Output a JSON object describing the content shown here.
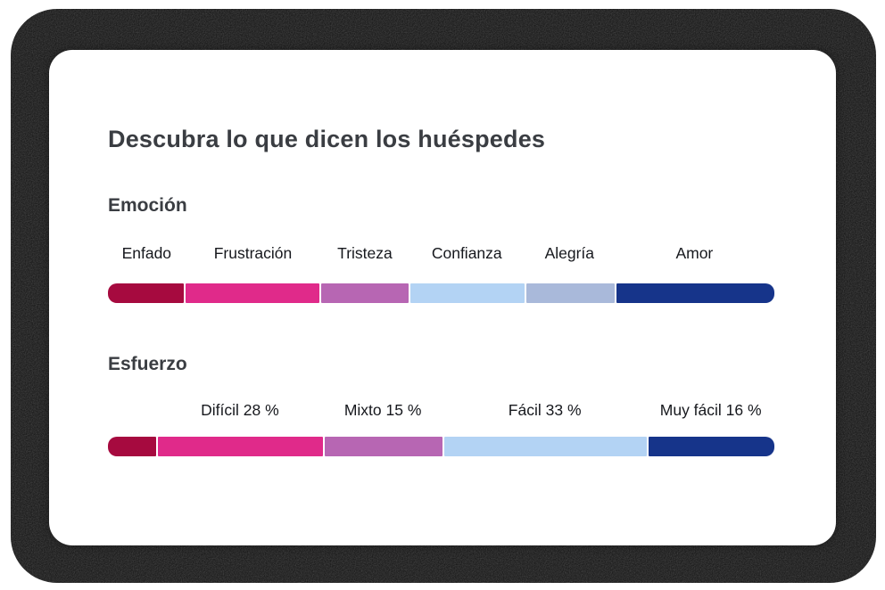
{
  "card": {
    "title": "Descubra lo que dicen los huéspedes"
  },
  "palette": {
    "enfado_crimson": "#A60A3F",
    "frustracion_pink": "#E02A8A",
    "tristeza_orchid": "#B766B3",
    "confianza_lightblue": "#B3D3F4",
    "alegria_grayblue": "#A9B9DA",
    "amor_navy": "#16348A",
    "heading_text": "#3a3d42",
    "label_text": "#16181d",
    "card_bg": "#ffffff",
    "backdrop_noise": "#101010"
  },
  "sections": [
    {
      "id": "emocion",
      "heading": "Emoción",
      "bar": {
        "segments": [
          {
            "label": "Enfado",
            "color": "#A60A3F",
            "width_pct": 11.6
          },
          {
            "label": "Frustración",
            "color": "#E02A8A",
            "width_pct": 20.3
          },
          {
            "label": "Tristeza",
            "color": "#B766B3",
            "width_pct": 13.3
          },
          {
            "label": "Confianza",
            "color": "#B3D3F4",
            "width_pct": 17.3
          },
          {
            "label": "Alegría",
            "color": "#A9B9DA",
            "width_pct": 13.5
          },
          {
            "label": "Amor",
            "color": "#16348A",
            "width_pct": 24.0
          }
        ]
      }
    },
    {
      "id": "esfuerzo",
      "heading": "Esfuerzo",
      "bar": {
        "segments": [
          {
            "label": "",
            "color": "#A60A3F",
            "width_pct": 7.3
          },
          {
            "label": "Difícil 28 %",
            "color": "#E02A8A",
            "width_pct": 25.0
          },
          {
            "label": "Mixto 15 %",
            "color": "#B766B3",
            "width_pct": 17.9
          },
          {
            "label": "Fácil 33 %",
            "color": "#B3D3F4",
            "width_pct": 30.7
          },
          {
            "label": "Muy fácil 16 %",
            "color": "#16348A",
            "width_pct": 19.1
          }
        ]
      }
    }
  ],
  "chart_data": [
    {
      "type": "bar",
      "subtype": "horizontal-stacked-single-bar",
      "title": "Emoción",
      "categories": [
        "Enfado",
        "Frustración",
        "Tristeza",
        "Confianza",
        "Alegría",
        "Amor"
      ],
      "values_pct_estimated_from_widths": [
        12,
        20,
        13,
        17,
        14,
        24
      ],
      "value_labels_shown": false,
      "colors": [
        "#A60A3F",
        "#E02A8A",
        "#B766B3",
        "#B3D3F4",
        "#A9B9DA",
        "#16348A"
      ],
      "legend_position": "labels-above-segments",
      "axis_shown": false
    },
    {
      "type": "bar",
      "subtype": "horizontal-stacked-single-bar",
      "title": "Esfuerzo",
      "categories": [
        "",
        "Difícil",
        "Mixto",
        "Fácil",
        "Muy fácil"
      ],
      "shown_values_pct": [
        null,
        28,
        15,
        33,
        16
      ],
      "widths_pct_rendered": [
        7.3,
        25.0,
        17.9,
        30.7,
        19.1
      ],
      "colors": [
        "#A60A3F",
        "#E02A8A",
        "#B766B3",
        "#B3D3F4",
        "#16348A"
      ],
      "legend_position": "labels-above-segments",
      "axis_shown": false
    }
  ]
}
